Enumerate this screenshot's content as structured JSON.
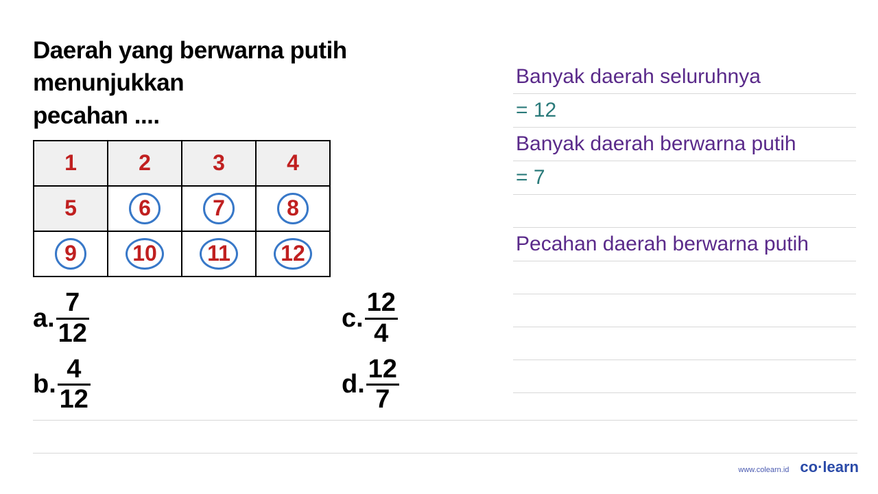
{
  "question": {
    "title_line1": "Daerah yang berwarna putih menunjukkan",
    "title_line2": "pecahan ...."
  },
  "grid": {
    "cols": 4,
    "rows": 3,
    "cells": [
      {
        "num": "1",
        "shaded": true,
        "circled": false
      },
      {
        "num": "2",
        "shaded": true,
        "circled": false
      },
      {
        "num": "3",
        "shaded": true,
        "circled": false
      },
      {
        "num": "4",
        "shaded": true,
        "circled": false
      },
      {
        "num": "5",
        "shaded": true,
        "circled": false
      },
      {
        "num": "6",
        "shaded": false,
        "circled": true
      },
      {
        "num": "7",
        "shaded": false,
        "circled": true
      },
      {
        "num": "8",
        "shaded": false,
        "circled": true
      },
      {
        "num": "9",
        "shaded": false,
        "circled": true
      },
      {
        "num": "10",
        "shaded": false,
        "circled": true,
        "wide": true
      },
      {
        "num": "11",
        "shaded": false,
        "circled": true,
        "wide": true
      },
      {
        "num": "12",
        "shaded": false,
        "circled": true,
        "wide": true
      }
    ],
    "number_color": "#c02020",
    "circle_color": "#3878c8",
    "shaded_bg": "#f0f0f0"
  },
  "options": {
    "a": {
      "label": "a.",
      "num": "7",
      "den": "12"
    },
    "b": {
      "label": "b.",
      "num": "4",
      "den": "12"
    },
    "c": {
      "label": "c.",
      "num": "12",
      "den": "4"
    },
    "d": {
      "label": "d.",
      "num": "12",
      "den": "7"
    }
  },
  "solution": {
    "line1": "Banyak daerah seluruhnya",
    "line2": "= 12",
    "line3": "Banyak daerah berwarna putih",
    "line4": "= 7",
    "line5": "Pecahan daerah berwarna putih",
    "colors": {
      "statement": "#5a2a8a",
      "answer": "#2a7a7a"
    }
  },
  "footer": {
    "url": "www.colearn.id",
    "logo": "co·learn"
  }
}
